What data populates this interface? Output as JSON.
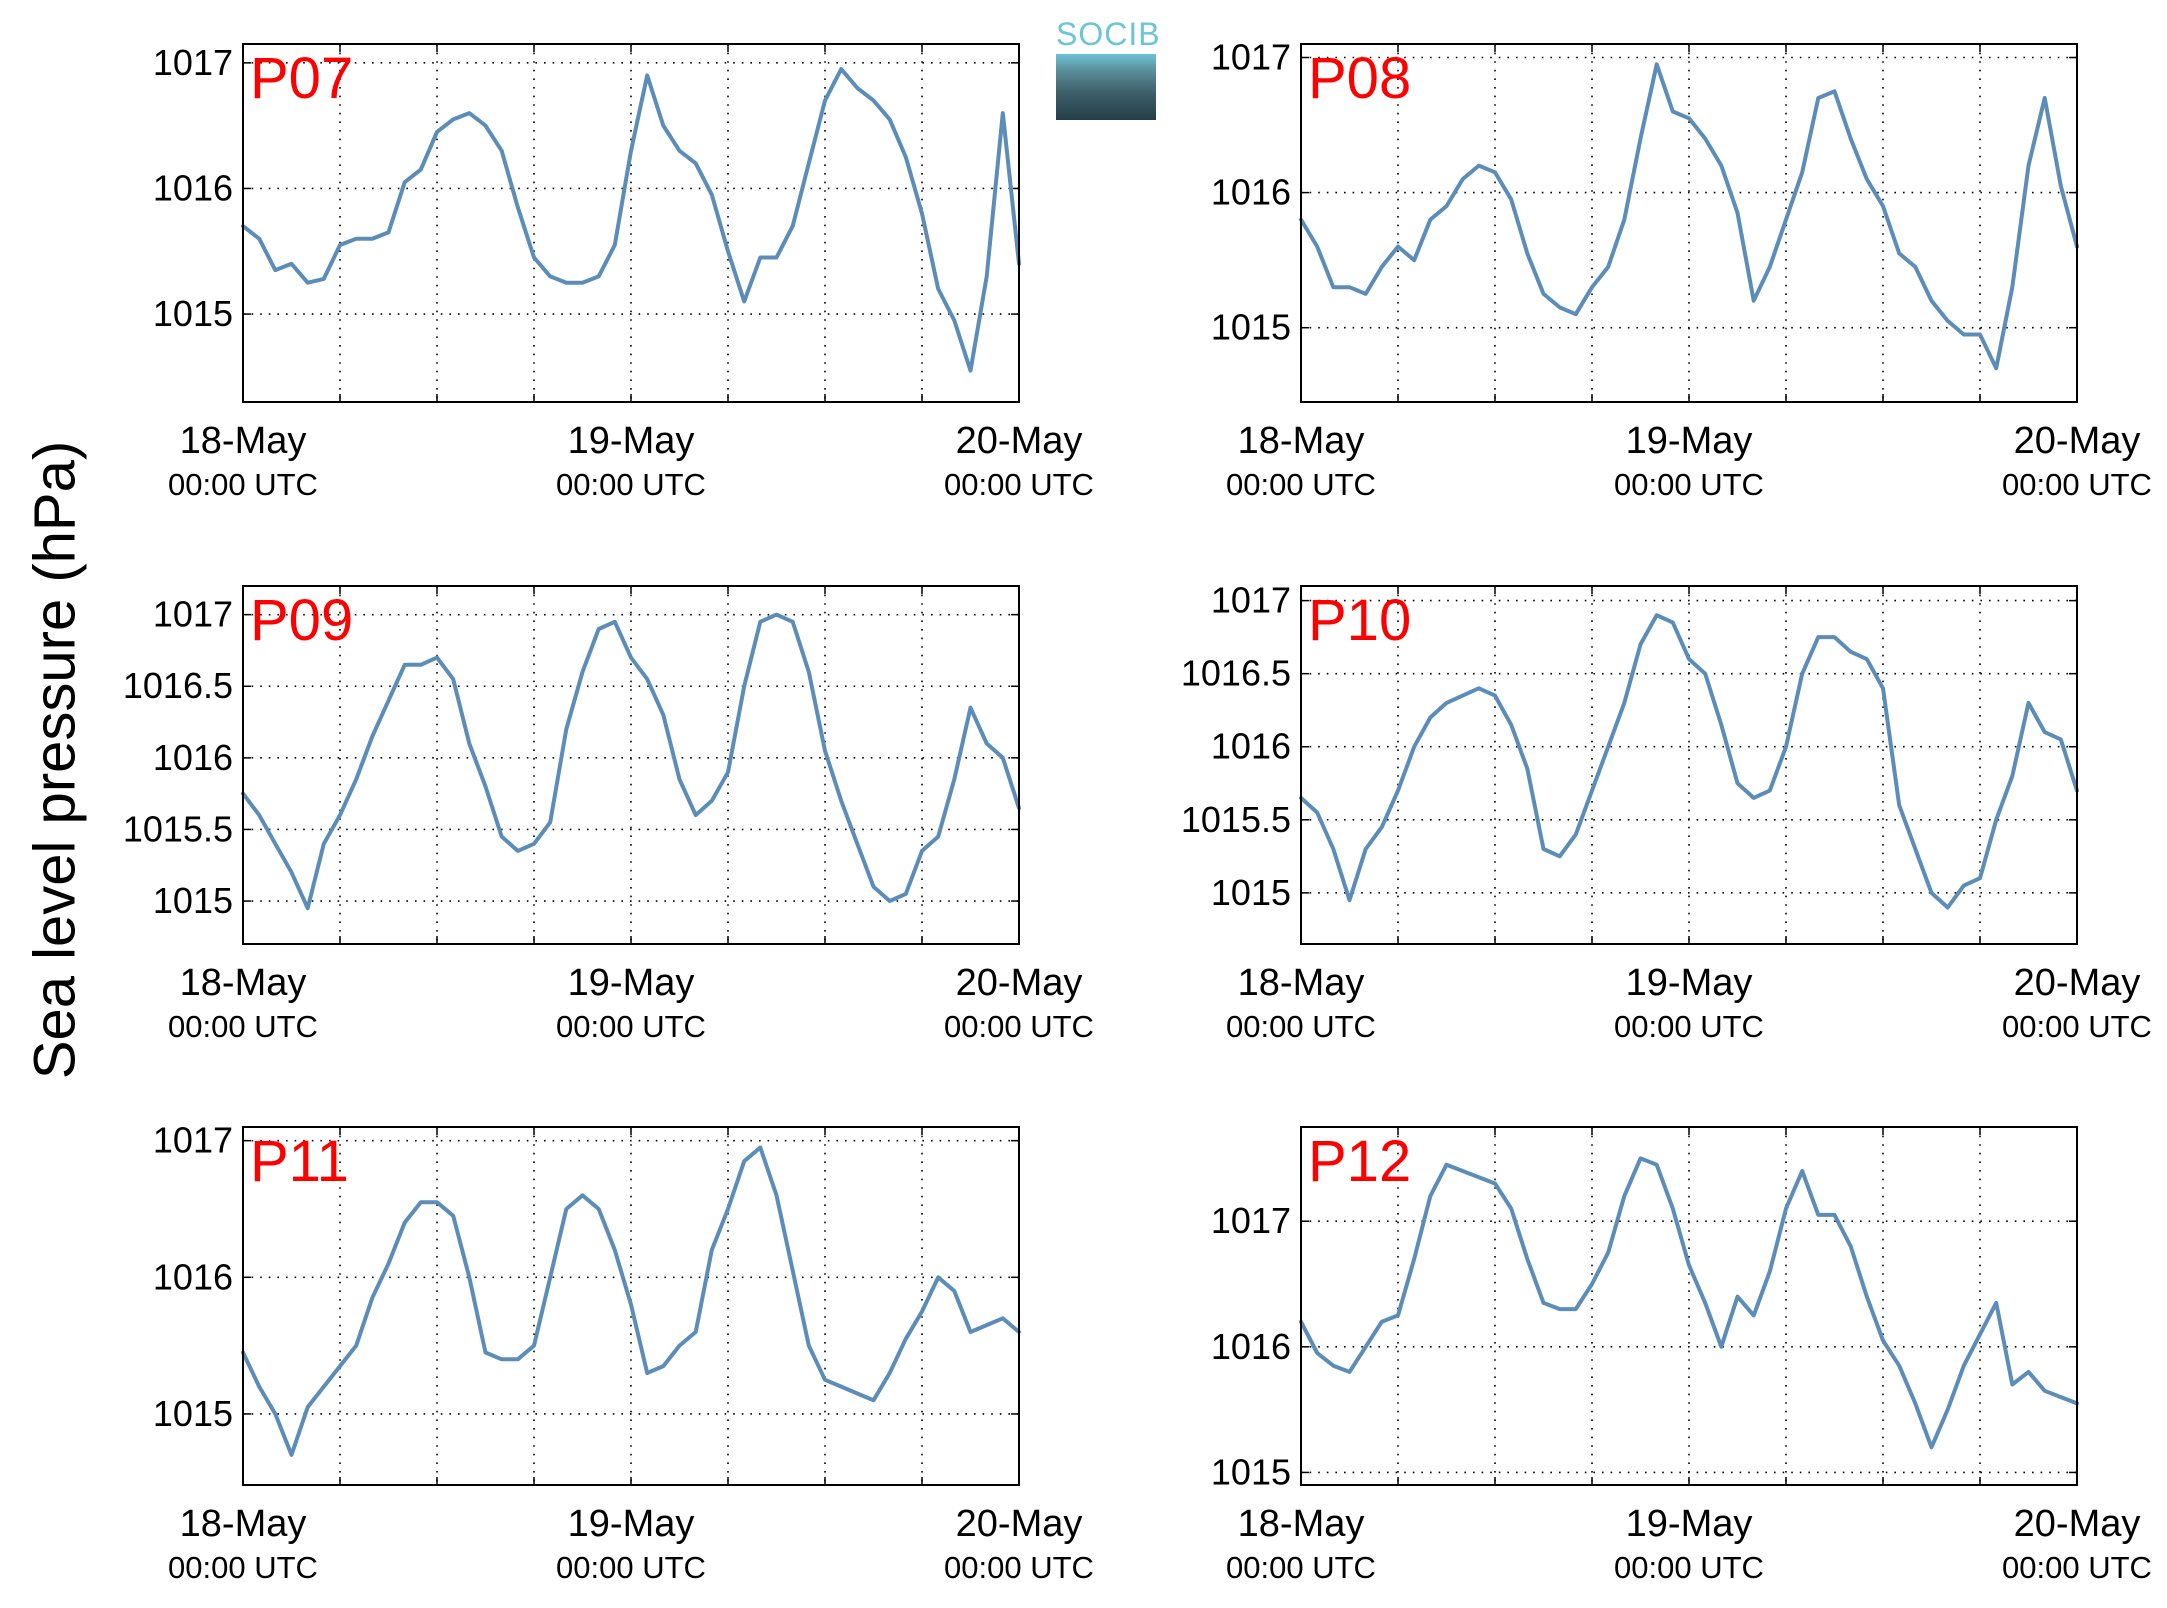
{
  "figure": {
    "ylabel": "Sea level pressure (hPa)",
    "logo_text": "SOCIB",
    "line_color": "#5b8db8",
    "label_color": "#ff0000"
  },
  "chart_data": [
    {
      "type": "line",
      "title": "P07",
      "xticks": [
        {
          "day": "18-May",
          "time": "00:00 UTC"
        },
        {
          "day": "19-May",
          "time": "00:00 UTC"
        },
        {
          "day": "20-May",
          "time": "00:00 UTC"
        }
      ],
      "xlim": [
        "2014-05-18 00:00",
        "2014-05-20 00:00"
      ],
      "ylim": [
        1014.3,
        1017.15
      ],
      "yticks": [
        "1015",
        "1016",
        "1017"
      ],
      "series": [
        {
          "x_hours": [
            0,
            1,
            2,
            3,
            4,
            5,
            6,
            7,
            8,
            9,
            10,
            11,
            12,
            13,
            14,
            15,
            16,
            17,
            18,
            19,
            20,
            21,
            22,
            23,
            24,
            25,
            26,
            27,
            28,
            29,
            30,
            31,
            32,
            33,
            34,
            35,
            36,
            37,
            38,
            39,
            40,
            41,
            42,
            43,
            44,
            45,
            46,
            47,
            48
          ],
          "values": [
            1015.7,
            1015.6,
            1015.35,
            1015.4,
            1015.25,
            1015.28,
            1015.55,
            1015.6,
            1015.6,
            1015.65,
            1016.05,
            1016.15,
            1016.45,
            1016.55,
            1016.6,
            1016.5,
            1016.3,
            1015.85,
            1015.45,
            1015.3,
            1015.25,
            1015.25,
            1015.3,
            1015.55,
            1016.3,
            1016.9,
            1016.5,
            1016.3,
            1016.2,
            1015.95,
            1015.5,
            1015.1,
            1015.45,
            1015.45,
            1015.7,
            1016.2,
            1016.7,
            1016.95,
            1016.8,
            1016.7,
            1016.55,
            1016.25,
            1015.8,
            1015.2,
            1014.95,
            1014.55,
            1015.3,
            1016.6,
            1015.4
          ]
        }
      ]
    },
    {
      "type": "line",
      "title": "P08",
      "xticks": [
        {
          "day": "18-May",
          "time": "00:00 UTC"
        },
        {
          "day": "19-May",
          "time": "00:00 UTC"
        },
        {
          "day": "20-May",
          "time": "00:00 UTC"
        }
      ],
      "xlim": [
        "2014-05-18 00:00",
        "2014-05-20 00:00"
      ],
      "ylim": [
        1014.45,
        1017.1
      ],
      "yticks": [
        "1015",
        "1016",
        "1017"
      ],
      "series": [
        {
          "x_hours": [
            0,
            1,
            2,
            3,
            4,
            5,
            6,
            7,
            8,
            9,
            10,
            11,
            12,
            13,
            14,
            15,
            16,
            17,
            18,
            19,
            20,
            21,
            22,
            23,
            24,
            25,
            26,
            27,
            28,
            29,
            30,
            31,
            32,
            33,
            34,
            35,
            36,
            37,
            38,
            39,
            40,
            41,
            42,
            43,
            44,
            45,
            46,
            47,
            48
          ],
          "values": [
            1015.8,
            1015.6,
            1015.3,
            1015.3,
            1015.25,
            1015.45,
            1015.6,
            1015.5,
            1015.8,
            1015.9,
            1016.1,
            1016.2,
            1016.15,
            1015.95,
            1015.55,
            1015.25,
            1015.15,
            1015.1,
            1015.3,
            1015.45,
            1015.8,
            1016.4,
            1016.95,
            1016.6,
            1016.55,
            1016.4,
            1016.2,
            1015.85,
            1015.2,
            1015.45,
            1015.8,
            1016.15,
            1016.7,
            1016.75,
            1016.4,
            1016.1,
            1015.9,
            1015.55,
            1015.45,
            1015.2,
            1015.05,
            1014.95,
            1014.95,
            1014.7,
            1015.3,
            1016.2,
            1016.7,
            1016.05,
            1015.6
          ]
        }
      ]
    },
    {
      "type": "line",
      "title": "P09",
      "xticks": [
        {
          "day": "18-May",
          "time": "00:00 UTC"
        },
        {
          "day": "19-May",
          "time": "00:00 UTC"
        },
        {
          "day": "20-May",
          "time": "00:00 UTC"
        }
      ],
      "xlim": [
        "2014-05-18 00:00",
        "2014-05-20 00:00"
      ],
      "ylim": [
        1014.7,
        1017.2
      ],
      "yticks": [
        "1015",
        "1015.5",
        "1016",
        "1016.5",
        "1017"
      ],
      "series": [
        {
          "x_hours": [
            0,
            1,
            2,
            3,
            4,
            5,
            6,
            7,
            8,
            9,
            10,
            11,
            12,
            13,
            14,
            15,
            16,
            17,
            18,
            19,
            20,
            21,
            22,
            23,
            24,
            25,
            26,
            27,
            28,
            29,
            30,
            31,
            32,
            33,
            34,
            35,
            36,
            37,
            38,
            39,
            40,
            41,
            42,
            43,
            44,
            45,
            46,
            47,
            48
          ],
          "values": [
            1015.75,
            1015.6,
            1015.4,
            1015.2,
            1014.95,
            1015.4,
            1015.6,
            1015.85,
            1016.15,
            1016.4,
            1016.65,
            1016.65,
            1016.7,
            1016.55,
            1016.1,
            1015.8,
            1015.45,
            1015.35,
            1015.4,
            1015.55,
            1016.2,
            1016.6,
            1016.9,
            1016.95,
            1016.7,
            1016.55,
            1016.3,
            1015.85,
            1015.6,
            1015.7,
            1015.9,
            1016.5,
            1016.95,
            1017.0,
            1016.95,
            1016.6,
            1016.05,
            1015.7,
            1015.4,
            1015.1,
            1015.0,
            1015.05,
            1015.35,
            1015.45,
            1015.85,
            1016.35,
            1016.1,
            1016.0,
            1015.65
          ]
        }
      ]
    },
    {
      "type": "line",
      "title": "P10",
      "xticks": [
        {
          "day": "18-May",
          "time": "00:00 UTC"
        },
        {
          "day": "19-May",
          "time": "00:00 UTC"
        },
        {
          "day": "20-May",
          "time": "00:00 UTC"
        }
      ],
      "xlim": [
        "2014-05-18 00:00",
        "2014-05-20 00:00"
      ],
      "ylim": [
        1014.65,
        1017.1
      ],
      "yticks": [
        "1015",
        "1015.5",
        "1016",
        "1016.5",
        "1017"
      ],
      "series": [
        {
          "x_hours": [
            0,
            1,
            2,
            3,
            4,
            5,
            6,
            7,
            8,
            9,
            10,
            11,
            12,
            13,
            14,
            15,
            16,
            17,
            18,
            19,
            20,
            21,
            22,
            23,
            24,
            25,
            26,
            27,
            28,
            29,
            30,
            31,
            32,
            33,
            34,
            35,
            36,
            37,
            38,
            39,
            40,
            41,
            42,
            43,
            44,
            45,
            46,
            47,
            48
          ],
          "values": [
            1015.65,
            1015.55,
            1015.3,
            1014.95,
            1015.3,
            1015.45,
            1015.7,
            1016.0,
            1016.2,
            1016.3,
            1016.35,
            1016.4,
            1016.35,
            1016.15,
            1015.85,
            1015.3,
            1015.25,
            1015.4,
            1015.7,
            1016.0,
            1016.3,
            1016.7,
            1016.9,
            1016.85,
            1016.6,
            1016.5,
            1016.15,
            1015.75,
            1015.65,
            1015.7,
            1016.0,
            1016.5,
            1016.75,
            1016.75,
            1016.65,
            1016.6,
            1016.4,
            1015.6,
            1015.3,
            1015.0,
            1014.9,
            1015.05,
            1015.1,
            1015.5,
            1015.8,
            1016.3,
            1016.1,
            1016.05,
            1015.7
          ]
        }
      ]
    },
    {
      "type": "line",
      "title": "P11",
      "xticks": [
        {
          "day": "18-May",
          "time": "00:00 UTC"
        },
        {
          "day": "19-May",
          "time": "00:00 UTC"
        },
        {
          "day": "20-May",
          "time": "00:00 UTC"
        }
      ],
      "xlim": [
        "2014-05-18 00:00",
        "2014-05-20 00:00"
      ],
      "ylim": [
        1014.48,
        1017.1
      ],
      "yticks": [
        "1015",
        "1016",
        "1017"
      ],
      "series": [
        {
          "x_hours": [
            0,
            1,
            2,
            3,
            4,
            5,
            6,
            7,
            8,
            9,
            10,
            11,
            12,
            13,
            14,
            15,
            16,
            17,
            18,
            19,
            20,
            21,
            22,
            23,
            24,
            25,
            26,
            27,
            28,
            29,
            30,
            31,
            32,
            33,
            34,
            35,
            36,
            37,
            38,
            39,
            40,
            41,
            42,
            43,
            44,
            45,
            46,
            47,
            48
          ],
          "values": [
            1015.45,
            1015.2,
            1015.0,
            1014.7,
            1015.05,
            1015.2,
            1015.35,
            1015.5,
            1015.85,
            1016.1,
            1016.4,
            1016.55,
            1016.55,
            1016.45,
            1016.0,
            1015.45,
            1015.4,
            1015.4,
            1015.5,
            1016.0,
            1016.5,
            1016.6,
            1016.5,
            1016.2,
            1015.8,
            1015.3,
            1015.35,
            1015.5,
            1015.6,
            1016.2,
            1016.5,
            1016.85,
            1016.95,
            1016.6,
            1016.05,
            1015.5,
            1015.25,
            1015.2,
            1015.15,
            1015.1,
            1015.3,
            1015.55,
            1015.75,
            1016.0,
            1015.9,
            1015.6,
            1015.65,
            1015.7,
            1015.6
          ]
        }
      ]
    },
    {
      "type": "line",
      "title": "P12",
      "xticks": [
        {
          "day": "18-May",
          "time": "00:00 UTC"
        },
        {
          "day": "19-May",
          "time": "00:00 UTC"
        },
        {
          "day": "20-May",
          "time": "00:00 UTC"
        }
      ],
      "xlim": [
        "2014-05-18 00:00",
        "2014-05-20 00:00"
      ],
      "ylim": [
        1014.9,
        1017.75
      ],
      "yticks": [
        "1015",
        "1016",
        "1017"
      ],
      "series": [
        {
          "x_hours": [
            0,
            1,
            2,
            3,
            4,
            5,
            6,
            7,
            8,
            9,
            10,
            11,
            12,
            13,
            14,
            15,
            16,
            17,
            18,
            19,
            20,
            21,
            22,
            23,
            24,
            25,
            26,
            27,
            28,
            29,
            30,
            31,
            32,
            33,
            34,
            35,
            36,
            37,
            38,
            39,
            40,
            41,
            42,
            43,
            44,
            45,
            46,
            47,
            48
          ],
          "values": [
            1016.2,
            1015.95,
            1015.85,
            1015.8,
            1016.0,
            1016.2,
            1016.25,
            1016.7,
            1017.2,
            1017.45,
            1017.4,
            1017.35,
            1017.3,
            1017.1,
            1016.7,
            1016.35,
            1016.3,
            1016.3,
            1016.5,
            1016.75,
            1017.2,
            1017.5,
            1017.45,
            1017.1,
            1016.65,
            1016.35,
            1016.0,
            1016.4,
            1016.25,
            1016.6,
            1017.1,
            1017.4,
            1017.05,
            1017.05,
            1016.8,
            1016.4,
            1016.05,
            1015.85,
            1015.55,
            1015.2,
            1015.5,
            1015.85,
            1016.1,
            1016.35,
            1015.7,
            1015.8,
            1015.65,
            1015.6,
            1015.55
          ]
        }
      ]
    }
  ]
}
